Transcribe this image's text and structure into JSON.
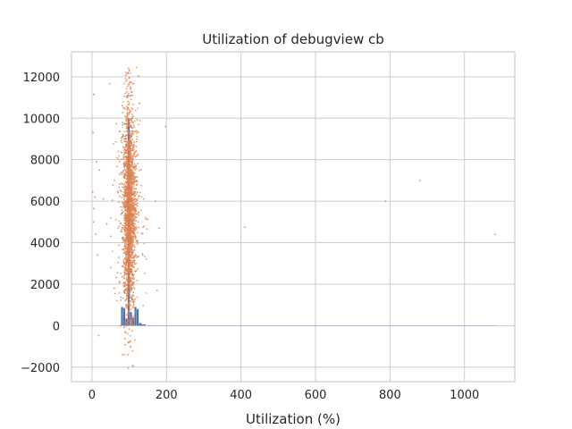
{
  "chart_data": {
    "type": "scatter",
    "title": "Utilization of debugview cb",
    "xlabel": "Utilization (%)",
    "ylabel": "",
    "xlim": [
      -55,
      1135
    ],
    "ylim": [
      -2700,
      13200
    ],
    "xticks": [
      0,
      200,
      400,
      600,
      800,
      1000
    ],
    "yticks": [
      -2000,
      0,
      2000,
      4000,
      6000,
      8000,
      10000,
      12000
    ],
    "grid": true,
    "colors": {
      "background": "#ffffff",
      "grid": "#cccccc",
      "spine": "#cccccc",
      "histogram": "#4c72b0",
      "scatter": "#dd8452"
    },
    "series": [
      {
        "type": "histogram",
        "bins": [
          {
            "x0": 78,
            "x1": 84,
            "value": 900
          },
          {
            "x0": 84,
            "x1": 90,
            "value": 850
          },
          {
            "x0": 90,
            "x1": 96,
            "value": 320
          },
          {
            "x0": 96,
            "x1": 102,
            "value": 10000
          },
          {
            "x0": 102,
            "x1": 108,
            "value": 650
          },
          {
            "x0": 108,
            "x1": 114,
            "value": 380
          },
          {
            "x0": 114,
            "x1": 120,
            "value": 900
          },
          {
            "x0": 120,
            "x1": 126,
            "value": 800
          },
          {
            "x0": 126,
            "x1": 134,
            "value": 120
          },
          {
            "x0": 134,
            "x1": 145,
            "value": 60
          }
        ]
      },
      {
        "type": "scatter",
        "cluster": {
          "center_x": 100,
          "spread_x": 14,
          "center_y": 5500,
          "spread_y": 2600,
          "count": 2200
        },
        "outliers": [
          {
            "x": 5,
            "y": 11150
          },
          {
            "x": 3,
            "y": 9300
          },
          {
            "x": 12,
            "y": 7900
          },
          {
            "x": 20,
            "y": 7500
          },
          {
            "x": 2,
            "y": 6450
          },
          {
            "x": 8,
            "y": 6200
          },
          {
            "x": 30,
            "y": 6100
          },
          {
            "x": 5,
            "y": 5650
          },
          {
            "x": 4,
            "y": 5000
          },
          {
            "x": 10,
            "y": 4400
          },
          {
            "x": 15,
            "y": 3400
          },
          {
            "x": 40,
            "y": 4900
          },
          {
            "x": 50,
            "y": 2800
          },
          {
            "x": 60,
            "y": 1800
          },
          {
            "x": 18,
            "y": -480
          },
          {
            "x": 198,
            "y": 9600
          },
          {
            "x": 170,
            "y": 6000
          },
          {
            "x": 180,
            "y": 4700
          },
          {
            "x": 175,
            "y": 1700
          },
          {
            "x": 410,
            "y": 4750
          },
          {
            "x": 788,
            "y": 6000
          },
          {
            "x": 880,
            "y": 7000
          },
          {
            "x": 1082,
            "y": 4400
          }
        ]
      }
    ]
  }
}
